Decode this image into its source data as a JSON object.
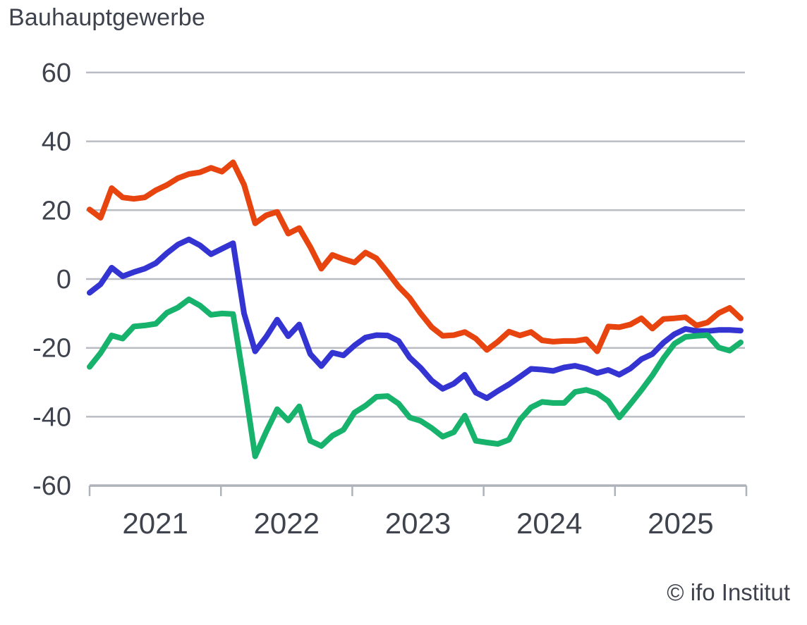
{
  "title": "Bauhauptgewerbe",
  "attribution": "© ifo Institut",
  "colors": {
    "orange_series": "#e7440f",
    "blue_series": "#3434d2",
    "green_series": "#17b26c",
    "gridline": "#b9bdc3",
    "axis": "#aeb3ba",
    "text": "#3d424c"
  },
  "chart_data": {
    "type": "line",
    "title": "Bauhauptgewerbe",
    "xlabel": "",
    "ylabel": "",
    "x_tick_labels": [
      "2021",
      "2022",
      "2023",
      "2024",
      "2025"
    ],
    "cadence": "monthly, Jan 2021 - Dec 2025",
    "ylim": [
      -60,
      60
    ],
    "y_ticks": [
      60,
      40,
      20,
      0,
      -20,
      -40,
      -60
    ],
    "grid": "horizontal",
    "legend": "none",
    "series": [
      {
        "name": "orange",
        "color": "#e7440f",
        "values": [
          20.2,
          17.8,
          26.4,
          23.7,
          23.3,
          23.7,
          25.8,
          27.3,
          29.3,
          30.5,
          31.0,
          32.3,
          31.2,
          33.9,
          27.4,
          16.2,
          18.5,
          19.5,
          13.2,
          14.8,
          9.3,
          3.0,
          7.0,
          5.8,
          4.8,
          7.7,
          6.0,
          2.0,
          -2.2,
          -5.5,
          -10.0,
          -14.0,
          -16.5,
          -16.3,
          -15.4,
          -17.3,
          -20.6,
          -18.2,
          -15.3,
          -16.4,
          -15.4,
          -17.8,
          -18.2,
          -18.0,
          -18.0,
          -17.5,
          -21.0,
          -13.8,
          -14.0,
          -13.2,
          -11.4,
          -14.4,
          -11.6,
          -11.4,
          -11.1,
          -13.5,
          -12.6,
          -9.9,
          -8.4,
          -11.4
        ]
      },
      {
        "name": "blue",
        "color": "#3434d2",
        "values": [
          -4.0,
          -1.5,
          3.3,
          0.8,
          2.0,
          3.0,
          4.6,
          7.5,
          10.0,
          11.5,
          9.8,
          7.2,
          8.8,
          10.4,
          -10.0,
          -21.0,
          -16.8,
          -11.8,
          -16.6,
          -13.2,
          -21.8,
          -25.3,
          -21.4,
          -22.2,
          -19.3,
          -17.0,
          -16.3,
          -16.4,
          -18.0,
          -22.8,
          -25.8,
          -29.5,
          -31.9,
          -30.4,
          -27.8,
          -33.0,
          -34.6,
          -32.5,
          -30.6,
          -28.4,
          -26.1,
          -26.3,
          -26.7,
          -25.7,
          -25.2,
          -26.0,
          -27.3,
          -26.4,
          -27.8,
          -26.0,
          -23.3,
          -21.8,
          -18.5,
          -16.0,
          -14.5,
          -15.1,
          -15.1,
          -14.8,
          -14.8,
          -15.0
        ]
      },
      {
        "name": "green",
        "color": "#17b26c",
        "values": [
          -25.5,
          -21.5,
          -16.4,
          -17.3,
          -13.8,
          -13.5,
          -13.0,
          -9.8,
          -8.3,
          -5.9,
          -7.7,
          -10.4,
          -10.0,
          -10.2,
          -30.0,
          -51.5,
          -44.4,
          -37.8,
          -41.1,
          -37.0,
          -47.0,
          -48.5,
          -45.5,
          -43.8,
          -38.8,
          -36.8,
          -34.2,
          -34.0,
          -36.2,
          -40.2,
          -41.2,
          -43.3,
          -45.8,
          -44.5,
          -39.7,
          -47.0,
          -47.5,
          -47.9,
          -46.7,
          -40.9,
          -37.3,
          -35.7,
          -36.0,
          -36.0,
          -32.8,
          -32.2,
          -33.2,
          -35.5,
          -40.2,
          -36.3,
          -32.3,
          -28.0,
          -23.0,
          -18.8,
          -16.8,
          -16.5,
          -16.3,
          -19.9,
          -20.8,
          -18.4
        ]
      }
    ]
  }
}
